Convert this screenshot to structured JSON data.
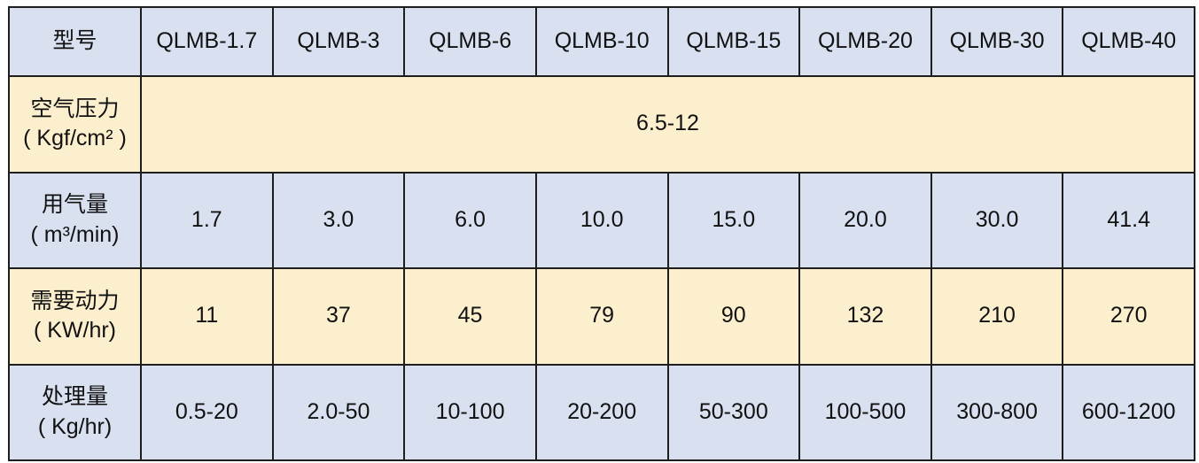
{
  "colors": {
    "blue_row": "#d9e0f0",
    "yellow_row": "#fcefcd",
    "border": "#1e1e1e"
  },
  "header": {
    "label": "型号",
    "models": [
      "QLMB-1.7",
      "QLMB-3",
      "QLMB-6",
      "QLMB-10",
      "QLMB-15",
      "QLMB-20",
      "QLMB-30",
      "QLMB-40"
    ]
  },
  "rows": [
    {
      "label": "空气压力",
      "unit": "( Kgf/cm² )",
      "merged_value": "6.5-12"
    },
    {
      "label": "用气量",
      "unit": "( m³/min)",
      "values": [
        "1.7",
        "3.0",
        "6.0",
        "10.0",
        "15.0",
        "20.0",
        "30.0",
        "41.4"
      ]
    },
    {
      "label": "需要动力",
      "unit": "( KW/hr)",
      "values": [
        "11",
        "37",
        "45",
        "79",
        "90",
        "132",
        "210",
        "270"
      ]
    },
    {
      "label": "处理量",
      "unit": "( Kg/hr)",
      "values": [
        "0.5-20",
        "2.0-50",
        "10-100",
        "20-200",
        "50-300",
        "100-500",
        "300-800",
        "600-1200"
      ]
    }
  ]
}
